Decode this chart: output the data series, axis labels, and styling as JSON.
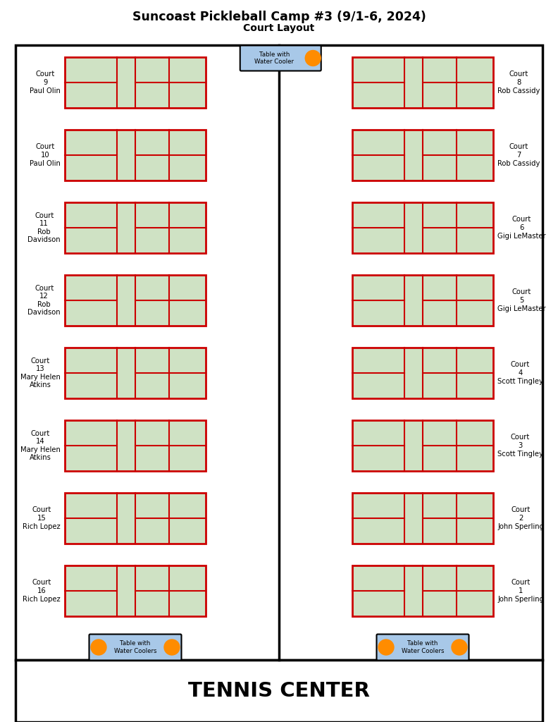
{
  "title": "Suncoast Pickleball Camp #3 (9/1-6, 2024)",
  "subtitle": "Court Layout",
  "tennis_center_label": "TENNIS CENTER",
  "court_fill": "#cfe2c4",
  "court_edge": "#cc0000",
  "outer_border_color": "#000000",
  "divider_color": "#000000",
  "table_fill": "#a8c8e8",
  "table_edge": "#000000",
  "cooler_color": "#FF8C00",
  "left_courts": [
    {
      "label": "Court\n9\nPaul Olin"
    },
    {
      "label": "Court\n10\nPaul Olin"
    },
    {
      "label": "Court\n11\nRob\nDavidson"
    },
    {
      "label": "Court\n12\nRob\nDavidson"
    },
    {
      "label": "Court\n13\nMary Helen\nAtkins"
    },
    {
      "label": "Court\n14\nMary Helen\nAtkins"
    },
    {
      "label": "Court\n15\nRich Lopez"
    },
    {
      "label": "Court\n16\nRich Lopez"
    }
  ],
  "right_courts": [
    {
      "label": "Court\n8\nRob Cassidy"
    },
    {
      "label": "Court\n7\nRob Cassidy"
    },
    {
      "label": "Court\n6\nGigi LeMaster"
    },
    {
      "label": "Court\n5\nGigi LeMaster"
    },
    {
      "label": "Court\n4\nScott Tingley"
    },
    {
      "label": "Court\n3\nScott Tingley"
    },
    {
      "label": "Court\n2\nJohn Sperling"
    },
    {
      "label": "Court\n1\nJohn Sperling"
    }
  ],
  "fig_width": 7.92,
  "fig_height": 10.24,
  "dpi": 100
}
